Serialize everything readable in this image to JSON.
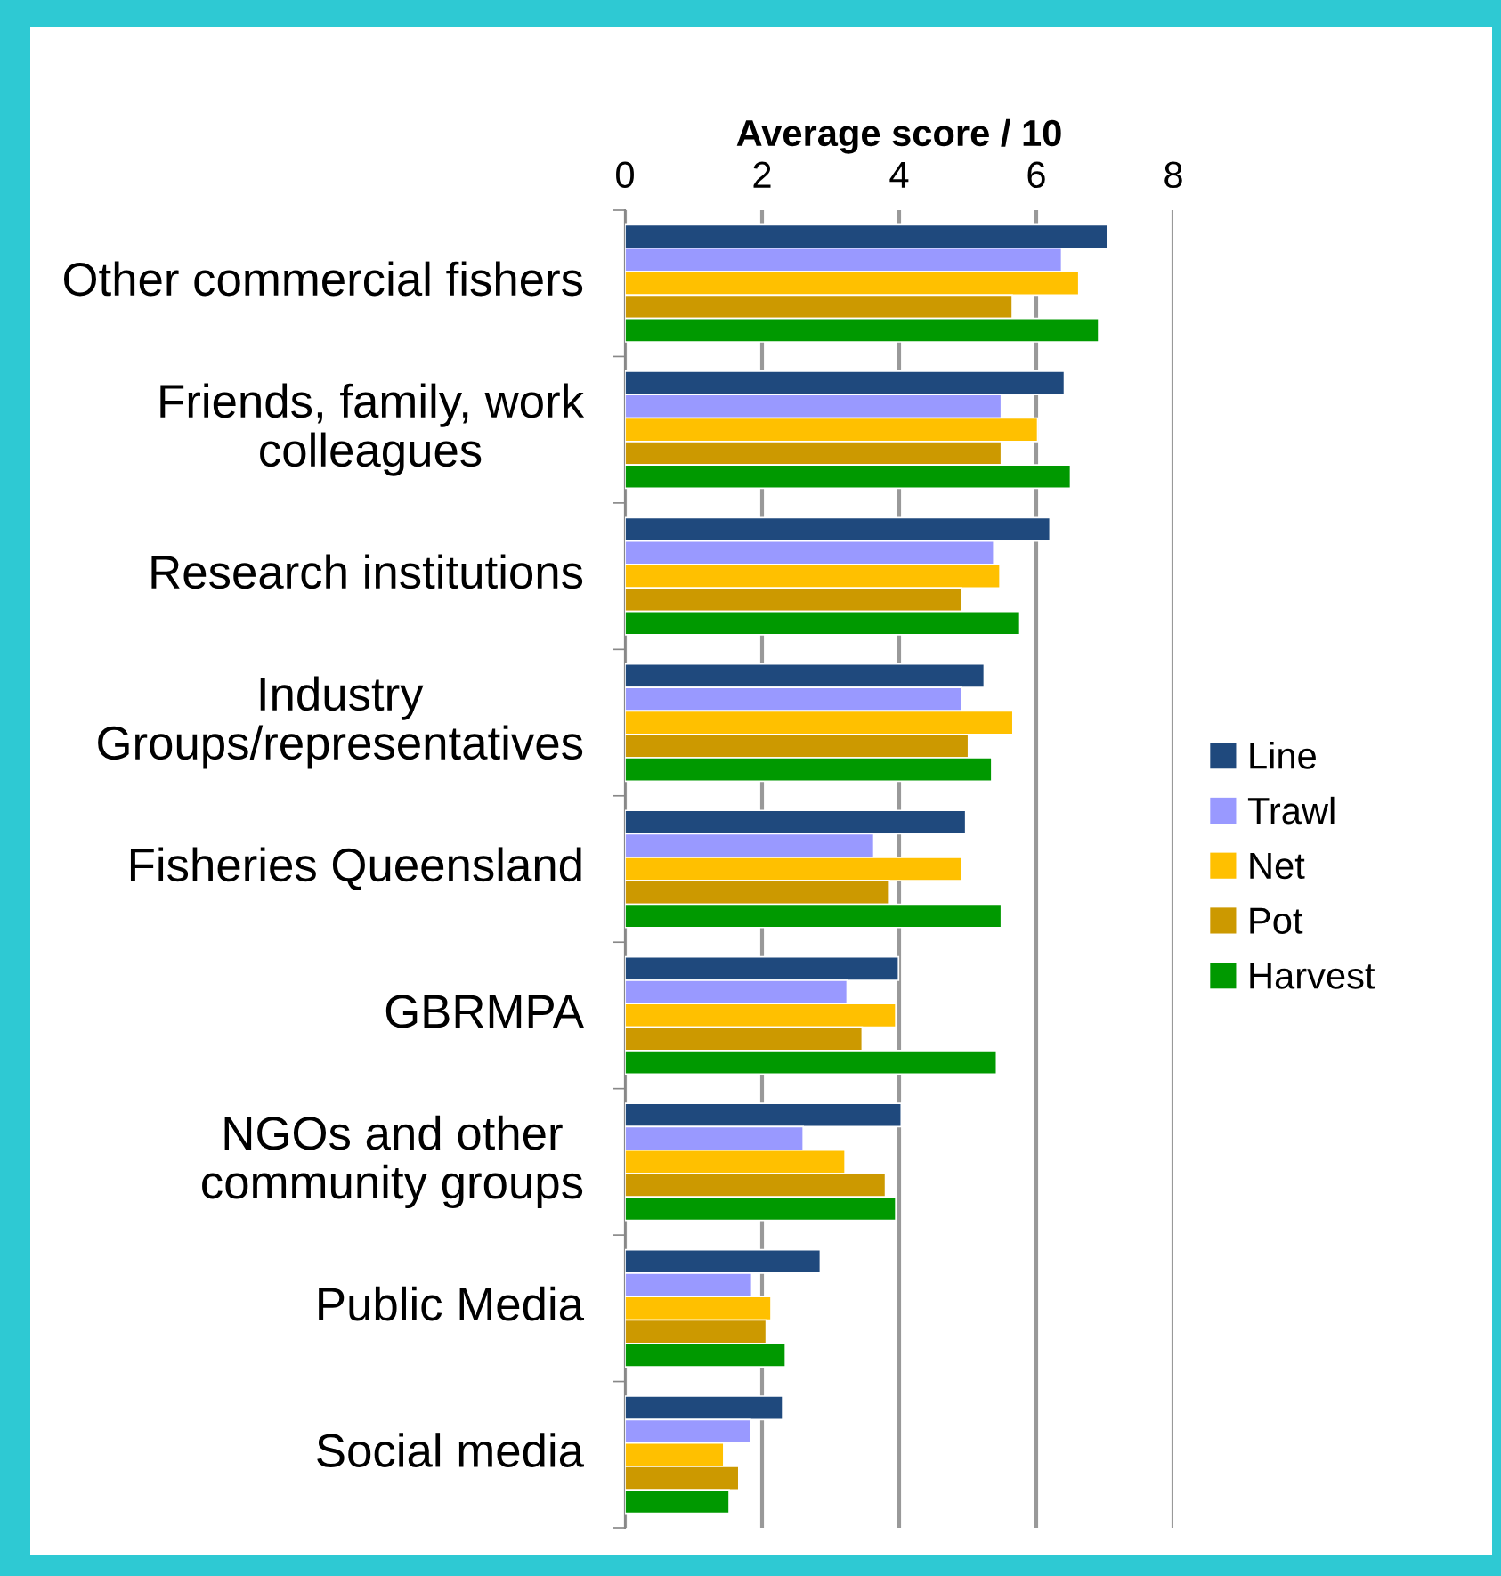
{
  "chart_data": {
    "type": "bar",
    "orientation": "horizontal",
    "xlabel": "Average score / 10",
    "categories": [
      "Other commercial fishers",
      "Friends, family, work colleagues",
      "Research institutions",
      "Industry Groups/representatives",
      "Fisheries Queensland",
      "GBRMPA",
      "NGOs and other community groups",
      "Public Media",
      "Social media"
    ],
    "series": [
      {
        "name": "Line",
        "color": "#1f497d",
        "values": [
          7.04,
          6.41,
          6.2,
          5.24,
          4.97,
          3.99,
          4.03,
          2.85,
          2.3
        ]
      },
      {
        "name": "Trawl",
        "color": "#9999ff",
        "values": [
          6.37,
          5.49,
          5.38,
          4.91,
          3.63,
          3.24,
          2.6,
          1.85,
          1.83
        ]
      },
      {
        "name": "Net",
        "color": "#ffc000",
        "values": [
          6.62,
          6.02,
          5.47,
          5.66,
          4.91,
          3.95,
          3.21,
          2.13,
          1.44
        ]
      },
      {
        "name": "Pot",
        "color": "#cc9900",
        "values": [
          5.65,
          5.49,
          4.91,
          5.01,
          3.86,
          3.46,
          3.8,
          2.06,
          1.66
        ]
      },
      {
        "name": "Harvest",
        "color": "#009900",
        "values": [
          6.91,
          6.5,
          5.76,
          5.35,
          5.49,
          5.42,
          3.95,
          2.34,
          1.52
        ]
      }
    ],
    "xlim": [
      0,
      8
    ],
    "xticks": [
      0,
      2,
      4,
      6,
      8
    ],
    "grid": "x",
    "legend": "right"
  }
}
